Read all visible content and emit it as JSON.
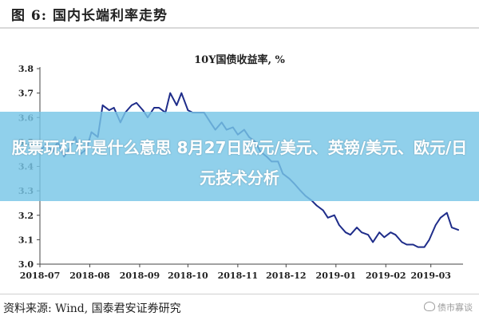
{
  "figure_title": "图 6:  国内长端利率走势",
  "overlay_headline": "股票玩杠杆是什么意思 8月27日欧元/美元、英镑/美元、欧元/日元技术分析",
  "source": "资料来源:  Wind, 国泰君安证券研究",
  "watermark": "债市寡谈",
  "colors": {
    "line": "#1f2d8a",
    "overlay": "#78c6e6",
    "axis": "#444444",
    "text": "#222222"
  },
  "chart_data": {
    "type": "line",
    "title": "10Y国债收益率, %",
    "xlabel": "",
    "ylabel": "",
    "ylim": [
      3.0,
      3.8
    ],
    "yticks": [
      "3.8",
      "3.7",
      "3.6",
      "3.5",
      "3.4",
      "3.3",
      "3.2",
      "3.1",
      "3.0"
    ],
    "xticks": [
      "2018-07",
      "2018-08",
      "2018-09",
      "2018-10",
      "2018-11",
      "2018-12",
      "2019-01",
      "2019-02",
      "2019-03"
    ],
    "grid": false,
    "legend": "none",
    "series": [
      {
        "x": [
          "2018-07-02",
          "2018-07-05",
          "2018-07-09",
          "2018-07-12",
          "2018-07-16",
          "2018-07-19",
          "2018-07-23",
          "2018-07-26",
          "2018-07-30",
          "2018-08-02",
          "2018-08-06",
          "2018-08-09",
          "2018-08-13",
          "2018-08-16",
          "2018-08-20",
          "2018-08-23",
          "2018-08-27",
          "2018-08-30",
          "2018-09-03",
          "2018-09-06",
          "2018-09-10",
          "2018-09-13",
          "2018-09-17",
          "2018-09-20",
          "2018-09-24",
          "2018-09-27",
          "2018-10-01",
          "2018-10-04",
          "2018-10-08",
          "2018-10-11",
          "2018-10-15",
          "2018-10-18",
          "2018-10-22",
          "2018-10-25",
          "2018-10-29",
          "2018-11-01",
          "2018-11-05",
          "2018-11-08",
          "2018-11-12",
          "2018-11-15",
          "2018-11-19",
          "2018-11-22",
          "2018-11-26",
          "2018-11-29",
          "2018-12-03",
          "2018-12-06",
          "2018-12-10",
          "2018-12-13",
          "2018-12-17",
          "2018-12-20",
          "2018-12-24",
          "2018-12-27",
          "2018-12-31",
          "2019-01-03",
          "2019-01-07",
          "2019-01-10",
          "2019-01-14",
          "2019-01-17",
          "2019-01-21",
          "2019-01-24",
          "2019-01-28",
          "2019-01-31",
          "2019-02-04",
          "2019-02-07",
          "2019-02-11",
          "2019-02-14",
          "2019-02-18",
          "2019-02-21",
          "2019-02-25",
          "2019-02-28",
          "2019-03-04",
          "2019-03-07",
          "2019-03-11",
          "2019-03-14",
          "2019-03-18"
        ],
        "values": [
          3.47,
          3.49,
          3.46,
          3.5,
          3.44,
          3.47,
          3.52,
          3.45,
          3.47,
          3.54,
          3.52,
          3.65,
          3.63,
          3.64,
          3.58,
          3.62,
          3.65,
          3.66,
          3.63,
          3.6,
          3.64,
          3.64,
          3.62,
          3.7,
          3.65,
          3.7,
          3.63,
          3.62,
          3.62,
          3.62,
          3.58,
          3.55,
          3.58,
          3.55,
          3.56,
          3.53,
          3.55,
          3.52,
          3.5,
          3.46,
          3.44,
          3.42,
          3.42,
          3.37,
          3.35,
          3.33,
          3.3,
          3.28,
          3.26,
          3.24,
          3.22,
          3.19,
          3.2,
          3.16,
          3.13,
          3.12,
          3.15,
          3.13,
          3.12,
          3.09,
          3.13,
          3.11,
          3.13,
          3.12,
          3.09,
          3.08,
          3.08,
          3.07,
          3.07,
          3.1,
          3.16,
          3.19,
          3.21,
          3.15,
          3.14
        ]
      }
    ]
  }
}
